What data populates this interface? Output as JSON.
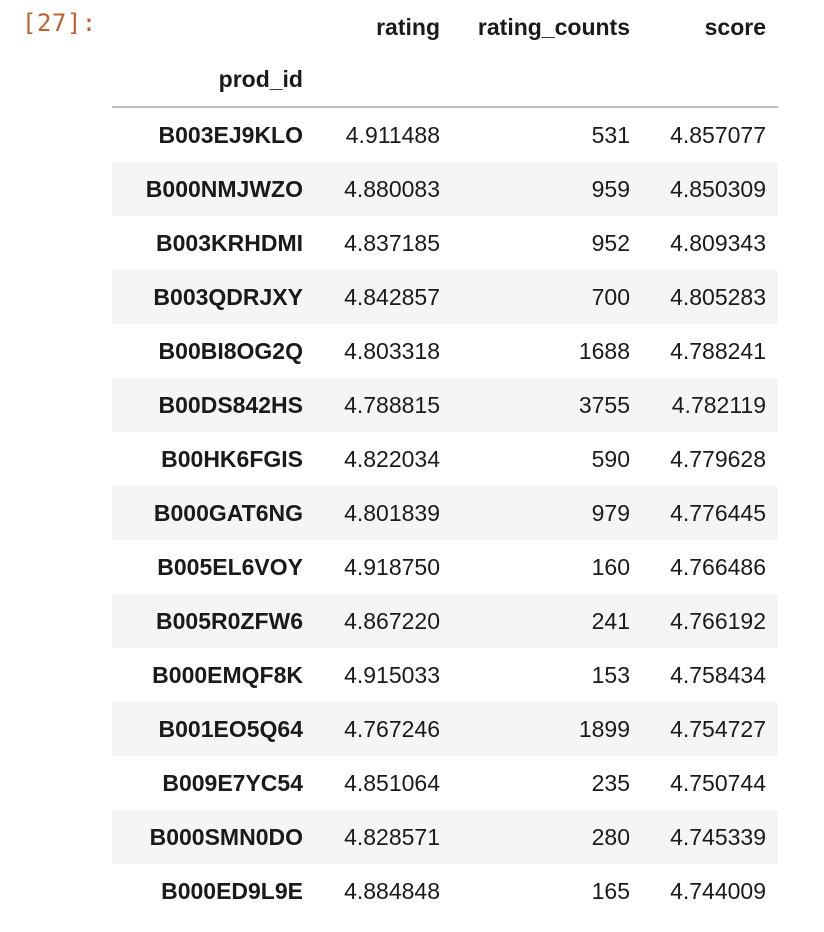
{
  "prompt": "[27]:",
  "table": {
    "columns": [
      "rating",
      "rating_counts",
      "score"
    ],
    "index_name": "prod_id",
    "rows": [
      {
        "prod_id": "B003EJ9KLO",
        "rating": "4.911488",
        "rating_counts": "531",
        "score": "4.857077"
      },
      {
        "prod_id": "B000NMJWZO",
        "rating": "4.880083",
        "rating_counts": "959",
        "score": "4.850309"
      },
      {
        "prod_id": "B003KRHDMI",
        "rating": "4.837185",
        "rating_counts": "952",
        "score": "4.809343"
      },
      {
        "prod_id": "B003QDRJXY",
        "rating": "4.842857",
        "rating_counts": "700",
        "score": "4.805283"
      },
      {
        "prod_id": "B00BI8OG2Q",
        "rating": "4.803318",
        "rating_counts": "1688",
        "score": "4.788241"
      },
      {
        "prod_id": "B00DS842HS",
        "rating": "4.788815",
        "rating_counts": "3755",
        "score": "4.782119"
      },
      {
        "prod_id": "B00HK6FGIS",
        "rating": "4.822034",
        "rating_counts": "590",
        "score": "4.779628"
      },
      {
        "prod_id": "B000GAT6NG",
        "rating": "4.801839",
        "rating_counts": "979",
        "score": "4.776445"
      },
      {
        "prod_id": "B005EL6VOY",
        "rating": "4.918750",
        "rating_counts": "160",
        "score": "4.766486"
      },
      {
        "prod_id": "B005R0ZFW6",
        "rating": "4.867220",
        "rating_counts": "241",
        "score": "4.766192"
      },
      {
        "prod_id": "B000EMQF8K",
        "rating": "4.915033",
        "rating_counts": "153",
        "score": "4.758434"
      },
      {
        "prod_id": "B001EO5Q64",
        "rating": "4.767246",
        "rating_counts": "1899",
        "score": "4.754727"
      },
      {
        "prod_id": "B009E7YC54",
        "rating": "4.851064",
        "rating_counts": "235",
        "score": "4.750744"
      },
      {
        "prod_id": "B000SMN0DO",
        "rating": "4.828571",
        "rating_counts": "280",
        "score": "4.745339"
      },
      {
        "prod_id": "B000ED9L9E",
        "rating": "4.884848",
        "rating_counts": "165",
        "score": "4.744009"
      }
    ]
  }
}
